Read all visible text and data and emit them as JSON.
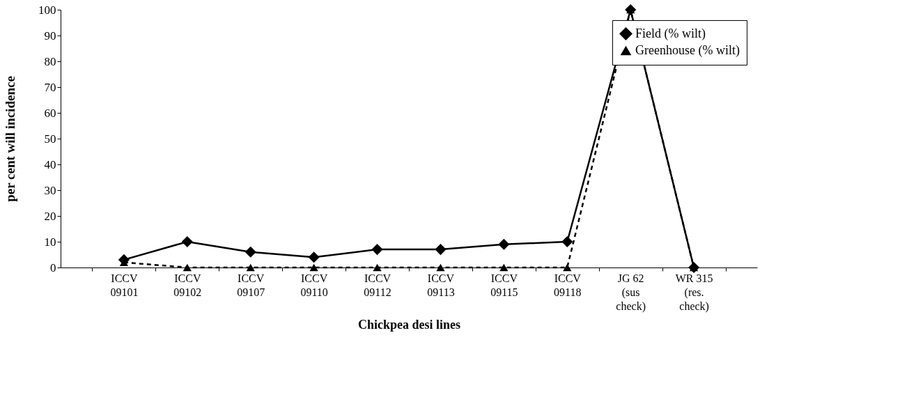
{
  "chart_data": {
    "type": "line",
    "xlabel": "Chickpea desi lines",
    "ylabel": "per cent will incidence",
    "categories": [
      "ICCV\n09101",
      "ICCV\n09102",
      "ICCV\n09107",
      "ICCV\n09110",
      "ICCV\n09112",
      "ICCV\n09113",
      "ICCV\n09115",
      "ICCV\n09118",
      "JG 62\n(sus\ncheck)",
      "WR 315\n(res.\ncheck)"
    ],
    "series": [
      {
        "name": "Field (% wilt)",
        "color": "#000000",
        "marker": "diamond",
        "line_style": "solid",
        "values": [
          3,
          10,
          6,
          4,
          7,
          7,
          9,
          10,
          100,
          0
        ]
      },
      {
        "name": "Greenhouse (% wilt)",
        "color": "#000000",
        "marker": "triangle",
        "line_style": "dashed",
        "values": [
          2,
          0,
          0,
          0,
          0,
          0,
          0,
          0,
          100,
          0
        ]
      }
    ],
    "ylim": [
      0,
      100
    ],
    "yticks": [
      0,
      10,
      20,
      30,
      40,
      50,
      60,
      70,
      80,
      90,
      100
    ],
    "grid": false,
    "legend": "top right"
  }
}
